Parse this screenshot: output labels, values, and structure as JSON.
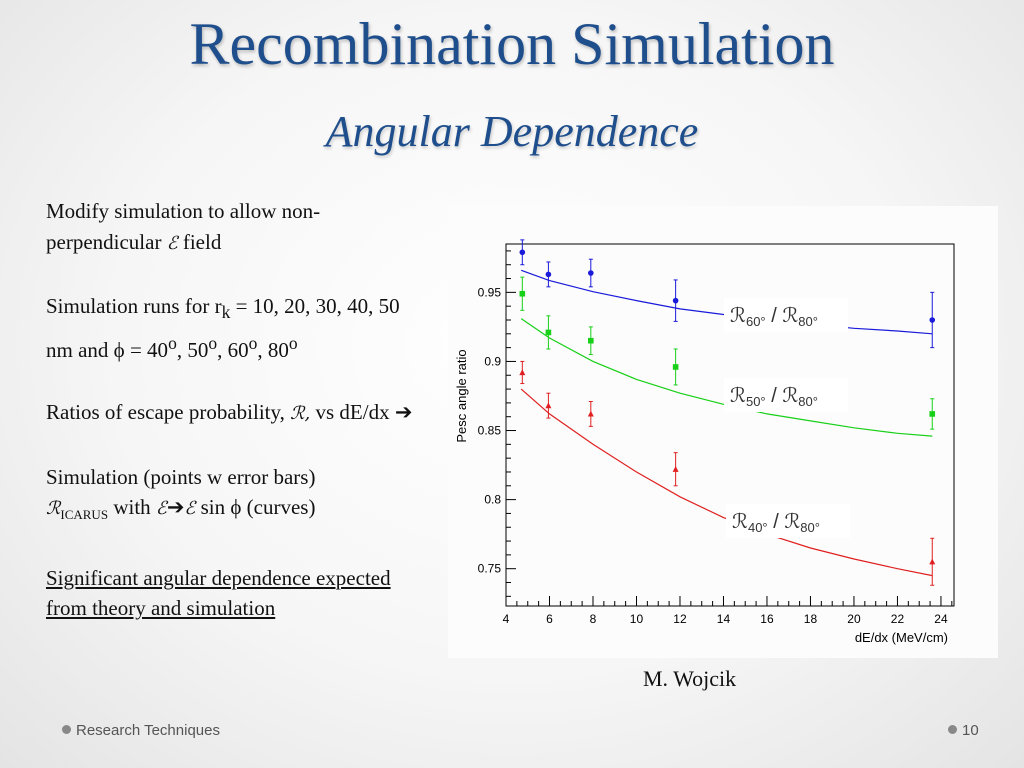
{
  "slide": {
    "title": "Recombination Simulation",
    "subtitle": "Angular Dependence",
    "bullets": {
      "p1_text": "Modify simulation to allow non-perpendicular",
      "p1_symbol": "ℰ",
      "p1_end": "field",
      "p2_text": "Simulation runs for r",
      "p2_sub": "k",
      "p2_values": " = 10, 20, 30, 40, 50 nm and ϕ = 40",
      "p2_deg": "o",
      "p2_a": ", 50",
      "p2_b": ", 60",
      "p2_c": ", 80",
      "p3_text": "Ratios of escape probability,",
      "p3_symbol": "ℛ,",
      "p3_end": "vs dE/dx",
      "p3_arrow": "➔",
      "p4_text": "Simulation (points w error bars)",
      "p4_symbol": "ℛ",
      "p4_sub": "ICARUS",
      "p4_with": " with ",
      "p4_e1": "ℰ",
      "p4_arrow": "➔",
      "p4_e2": "ℰ",
      "p4_end": " sin ϕ (curves)",
      "p5_text": "Significant angular dependence expected from theory and simulation"
    },
    "credit": "M. Wojcik",
    "footer_left": "Research Techniques",
    "footer_right": "10"
  },
  "chart_data": {
    "type": "scatter",
    "xlabel": "dE/dx (MeV/cm)",
    "ylabel": "Pesc angle ratio",
    "xlim": [
      4,
      24.6
    ],
    "ylim": [
      0.723,
      0.985
    ],
    "xticks": [
      "4",
      "6",
      "8",
      "10",
      "12",
      "14",
      "16",
      "18",
      "20",
      "22",
      "24"
    ],
    "yticks": [
      "0.75",
      "0.8",
      "0.85",
      "0.9",
      "0.95"
    ],
    "grid": false,
    "series": [
      {
        "name": "ℛ60° / ℛ80°",
        "label_main": "ℛ",
        "label_sub1": "60°",
        "label_slash": " / ",
        "label_main2": "ℛ",
        "label_sub2": "80°",
        "color": "#1a1adb",
        "marker": "circle",
        "x": [
          4.75,
          5.95,
          7.9,
          11.8,
          23.6
        ],
        "y": [
          0.979,
          0.963,
          0.964,
          0.944,
          0.93
        ],
        "err": [
          0.009,
          0.009,
          0.01,
          0.015,
          0.02
        ],
        "curve_x": [
          4.7,
          6,
          8,
          10,
          12,
          14,
          16,
          18,
          20,
          22,
          23.6
        ],
        "curve_y": [
          0.966,
          0.9585,
          0.9505,
          0.944,
          0.938,
          0.934,
          0.93,
          0.927,
          0.924,
          0.922,
          0.92
        ]
      },
      {
        "name": "ℛ50° / ℛ80°",
        "label_main": "ℛ",
        "label_sub1": "50°",
        "label_slash": " / ",
        "label_main2": "ℛ",
        "label_sub2": "80°",
        "color": "#18d018",
        "marker": "square",
        "x": [
          4.75,
          5.95,
          7.9,
          11.8,
          23.6
        ],
        "y": [
          0.949,
          0.921,
          0.915,
          0.896,
          0.862
        ],
        "err": [
          0.012,
          0.012,
          0.01,
          0.013,
          0.011
        ],
        "curve_x": [
          4.7,
          6,
          8,
          10,
          12,
          14,
          16,
          18,
          20,
          22,
          23.6
        ],
        "curve_y": [
          0.931,
          0.917,
          0.9,
          0.887,
          0.877,
          0.869,
          0.862,
          0.857,
          0.852,
          0.848,
          0.846
        ]
      },
      {
        "name": "ℛ40° / ℛ80°",
        "label_main": "ℛ",
        "label_sub1": "40°",
        "label_slash": " / ",
        "label_main2": "ℛ",
        "label_sub2": "80°",
        "color": "#e02020",
        "marker": "triangle",
        "x": [
          4.75,
          5.95,
          7.9,
          11.8,
          23.6
        ],
        "y": [
          0.892,
          0.868,
          0.862,
          0.822,
          0.755
        ],
        "err": [
          0.008,
          0.009,
          0.009,
          0.012,
          0.017
        ],
        "curve_x": [
          4.7,
          6,
          8,
          10,
          12,
          14,
          16,
          18,
          20,
          22,
          23.6
        ],
        "curve_y": [
          0.88,
          0.862,
          0.84,
          0.82,
          0.802,
          0.787,
          0.775,
          0.765,
          0.757,
          0.75,
          0.745
        ]
      }
    ]
  }
}
